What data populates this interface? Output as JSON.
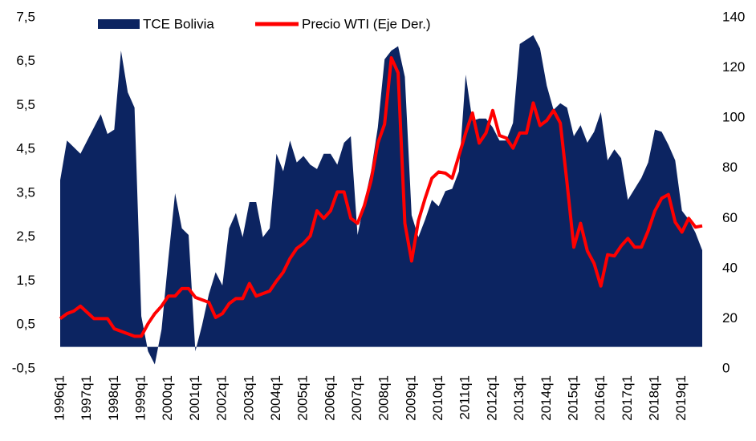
{
  "chart_data": {
    "type": "area",
    "categories": [
      "1996q1",
      null,
      null,
      null,
      "1997q1",
      null,
      null,
      null,
      "1998q1",
      null,
      null,
      null,
      "1999q1",
      null,
      null,
      null,
      "2000q1",
      null,
      null,
      null,
      "2001q1",
      null,
      null,
      null,
      "2002q1",
      null,
      null,
      null,
      "2003q1",
      null,
      null,
      null,
      "2004q1",
      null,
      null,
      null,
      "2005q1",
      null,
      null,
      null,
      "2006q1",
      null,
      null,
      null,
      "2007q1",
      null,
      null,
      null,
      "2008q1",
      null,
      null,
      null,
      "2009q1",
      null,
      null,
      null,
      "2010q1",
      null,
      null,
      null,
      "2011q1",
      null,
      null,
      null,
      "2012q1",
      null,
      null,
      null,
      "2013q1",
      null,
      null,
      null,
      "2014q1",
      null,
      null,
      null,
      "2015q1",
      null,
      null,
      null,
      "2016q1",
      null,
      null,
      null,
      "2017q1",
      null,
      null,
      null,
      "2018q1",
      null,
      null,
      null,
      "2019q1",
      null,
      null,
      null
    ],
    "series": [
      {
        "name": "TCE Bolivia",
        "type": "area",
        "color": "#0c2461",
        "axis": "y",
        "values": [
          3.8,
          4.7,
          4.55,
          4.4,
          4.7,
          5.0,
          5.3,
          4.85,
          4.95,
          6.75,
          5.8,
          5.45,
          0.7,
          -0.1,
          -0.4,
          0.4,
          2.0,
          3.5,
          2.7,
          2.55,
          -0.1,
          0.5,
          1.2,
          1.7,
          1.4,
          2.7,
          3.05,
          2.5,
          3.3,
          3.3,
          2.5,
          2.7,
          4.4,
          4.0,
          4.7,
          4.2,
          4.35,
          4.15,
          4.05,
          4.4,
          4.4,
          4.15,
          4.65,
          4.8,
          2.55,
          3.3,
          4.0,
          5.0,
          6.55,
          6.75,
          6.85,
          6.15,
          3.0,
          2.5,
          2.9,
          3.35,
          3.2,
          3.55,
          3.6,
          4.0,
          6.2,
          5.15,
          5.2,
          5.2,
          5.0,
          4.7,
          4.7,
          5.1,
          6.9,
          7.0,
          7.1,
          6.8,
          5.95,
          5.4,
          5.55,
          5.45,
          4.8,
          5.05,
          4.65,
          4.9,
          5.35,
          4.25,
          4.5,
          4.3,
          3.35,
          3.6,
          3.85,
          4.2,
          4.95,
          4.9,
          4.6,
          4.25,
          3.1,
          2.9,
          2.6,
          2.2
        ]
      },
      {
        "name": "Precio WTI (Eje Der.)",
        "type": "line",
        "color": "#ff0000",
        "axis": "y2",
        "values": [
          20,
          22,
          23,
          25,
          22.5,
          20,
          20,
          20,
          16,
          15,
          14,
          13,
          13,
          18,
          22,
          25,
          29,
          29,
          32,
          32,
          28.5,
          27.5,
          26.5,
          20.5,
          22,
          26,
          28,
          28,
          34,
          29,
          30,
          31,
          35,
          38.5,
          44,
          48,
          50,
          53,
          63,
          60,
          63,
          70.5,
          70.5,
          60,
          58,
          65,
          75,
          90,
          97.5,
          124,
          118,
          58,
          43,
          59,
          68,
          76,
          78.5,
          78,
          76,
          85,
          94,
          102,
          90,
          94,
          103,
          93,
          92,
          88,
          94,
          94,
          106,
          97,
          99,
          103,
          98,
          74,
          48.5,
          58,
          47,
          42,
          33,
          45.5,
          45,
          49,
          52,
          48.5,
          48.5,
          55,
          63,
          68,
          69.5,
          58.5,
          54.5,
          60,
          56.5,
          57
        ]
      }
    ],
    "ylim": [
      -0.5,
      7.5
    ],
    "yticks": [
      {
        "value": -0.5,
        "label": "-0,5"
      },
      {
        "value": 0.5,
        "label": "0,5"
      },
      {
        "value": 1.5,
        "label": "1,5"
      },
      {
        "value": 2.5,
        "label": "2,5"
      },
      {
        "value": 3.5,
        "label": "3,5"
      },
      {
        "value": 4.5,
        "label": "4,5"
      },
      {
        "value": 5.5,
        "label": "5,5"
      },
      {
        "value": 6.5,
        "label": "6,5"
      },
      {
        "value": 7.5,
        "label": "7,5"
      }
    ],
    "y2lim": [
      0,
      140
    ],
    "y2ticks": [
      0,
      20,
      40,
      60,
      80,
      100,
      120,
      140
    ],
    "grid": false,
    "legend": "top"
  }
}
